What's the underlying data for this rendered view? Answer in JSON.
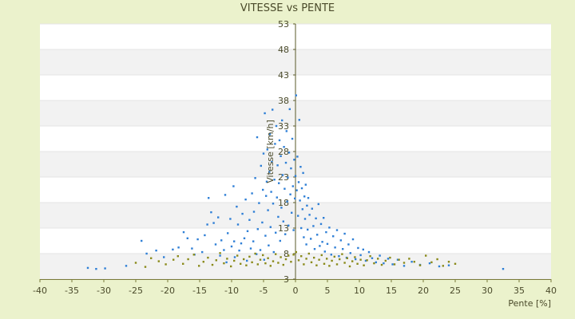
{
  "chart_data": {
    "type": "scatter",
    "title": "VITESSE vs PENTE",
    "xlabel": "Pente [%]",
    "ylabel": "Vitesse [km/h]",
    "xlim": [
      -40,
      40
    ],
    "ylim": [
      3,
      53
    ],
    "x_ticks": [
      -40,
      -35,
      -30,
      -25,
      -20,
      -15,
      -10,
      -5,
      0,
      5,
      10,
      15,
      20,
      25,
      30,
      35,
      40
    ],
    "y_ticks": [
      3,
      8,
      13,
      18,
      23,
      28,
      33,
      38,
      43,
      48,
      53
    ],
    "grid": "alternating horizontal bands",
    "legend": "none",
    "series": [
      {
        "color": "#2f7fd6",
        "points": [
          [
            -32.5,
            5.2
          ],
          [
            -31.2,
            5.0
          ],
          [
            -29.8,
            5.1
          ],
          [
            -26.5,
            5.6
          ],
          [
            -24.1,
            10.5
          ],
          [
            -23.3,
            8.0
          ],
          [
            -21.8,
            8.6
          ],
          [
            -20.6,
            7.3
          ],
          [
            -19.2,
            8.8
          ],
          [
            -18.3,
            9.2
          ],
          [
            -17.5,
            12.2
          ],
          [
            -16.9,
            11.0
          ],
          [
            -16.2,
            9.0
          ],
          [
            -15.8,
            7.8
          ],
          [
            -15.3,
            10.8
          ],
          [
            -14.6,
            8.3
          ],
          [
            -14.2,
            11.6
          ],
          [
            -13.8,
            13.7
          ],
          [
            -13.6,
            18.9
          ],
          [
            -13.2,
            16.1
          ],
          [
            -12.8,
            14.0
          ],
          [
            -12.5,
            9.8
          ],
          [
            -12.1,
            15.1
          ],
          [
            -11.8,
            7.6
          ],
          [
            -11.6,
            10.6
          ],
          [
            -11.2,
            8.7
          ],
          [
            -11.0,
            19.5
          ],
          [
            -10.8,
            6.3
          ],
          [
            -10.6,
            12.0
          ],
          [
            -10.2,
            14.8
          ],
          [
            -10.0,
            9.4
          ],
          [
            -9.7,
            21.2
          ],
          [
            -9.6,
            10.4
          ],
          [
            -9.5,
            7.3
          ],
          [
            -9.2,
            17.2
          ],
          [
            -9.0,
            13.7
          ],
          [
            -8.8,
            8.6
          ],
          [
            -8.5,
            10.0
          ],
          [
            -8.3,
            15.8
          ],
          [
            -8.0,
            11.0
          ],
          [
            -7.8,
            18.6
          ],
          [
            -7.6,
            6.6
          ],
          [
            -7.5,
            12.4
          ],
          [
            -7.2,
            14.6
          ],
          [
            -7.0,
            9.0
          ],
          [
            -6.8,
            19.8
          ],
          [
            -6.6,
            10.4
          ],
          [
            -6.5,
            16.2
          ],
          [
            -6.3,
            22.8
          ],
          [
            -6.1,
            7.9
          ],
          [
            -6.0,
            30.8
          ],
          [
            -5.9,
            12.8
          ],
          [
            -5.7,
            17.9
          ],
          [
            -5.5,
            8.7
          ],
          [
            -5.4,
            25.2
          ],
          [
            -5.2,
            14.1
          ],
          [
            -5.1,
            20.5
          ],
          [
            -5.0,
            27.6
          ],
          [
            -4.9,
            6.8
          ],
          [
            -4.8,
            35.5
          ],
          [
            -4.7,
            11.5
          ],
          [
            -4.6,
            19.3
          ],
          [
            -4.5,
            22.1
          ],
          [
            -4.4,
            28.4
          ],
          [
            -4.3,
            16.5
          ],
          [
            -4.2,
            9.6
          ],
          [
            -4.1,
            24.0
          ],
          [
            -4.0,
            31.4
          ],
          [
            -3.9,
            13.2
          ],
          [
            -3.8,
            20.1
          ],
          [
            -3.7,
            26.0
          ],
          [
            -3.6,
            36.2
          ],
          [
            -3.5,
            17.8
          ],
          [
            -3.4,
            8.3
          ],
          [
            -3.3,
            22.5
          ],
          [
            -3.2,
            29.5
          ],
          [
            -3.1,
            12.1
          ],
          [
            -3.0,
            33.0
          ],
          [
            -2.9,
            19.0
          ],
          [
            -2.8,
            25.3
          ],
          [
            -2.7,
            15.2
          ],
          [
            -2.6,
            21.8
          ],
          [
            -2.5,
            30.2
          ],
          [
            -2.4,
            10.5
          ],
          [
            -2.3,
            27.1
          ],
          [
            -2.2,
            17.0
          ],
          [
            -2.1,
            34.1
          ],
          [
            -2.0,
            23.4
          ],
          [
            -1.9,
            14.3
          ],
          [
            -1.8,
            28.9
          ],
          [
            -1.7,
            20.7
          ],
          [
            -1.6,
            11.8
          ],
          [
            -1.5,
            25.8
          ],
          [
            -1.4,
            32.0
          ],
          [
            -1.3,
            18.2
          ],
          [
            -1.2,
            22.9
          ],
          [
            -1.1,
            13.5
          ],
          [
            -1.0,
            27.8
          ],
          [
            -0.9,
            36.3
          ],
          [
            -0.8,
            19.6
          ],
          [
            -0.7,
            24.7
          ],
          [
            -0.6,
            16.0
          ],
          [
            -0.5,
            30.5
          ],
          [
            -0.4,
            21.2
          ],
          [
            -0.3,
            12.6
          ],
          [
            -0.2,
            26.4
          ],
          [
            -0.1,
            18.8
          ],
          [
            0.0,
            23.2
          ],
          [
            0.1,
            39.0
          ],
          [
            0.2,
            20.4
          ],
          [
            0.3,
            27.0
          ],
          [
            0.4,
            15.4
          ],
          [
            0.5,
            22.0
          ],
          [
            0.6,
            34.2
          ],
          [
            0.7,
            18.4
          ],
          [
            0.8,
            25.0
          ],
          [
            0.9,
            13.0
          ],
          [
            1.0,
            20.8
          ],
          [
            1.1,
            16.7
          ],
          [
            1.2,
            23.8
          ],
          [
            1.3,
            11.2
          ],
          [
            1.4,
            19.2
          ],
          [
            1.5,
            14.8
          ],
          [
            1.6,
            21.5
          ],
          [
            1.7,
            9.8
          ],
          [
            1.8,
            17.4
          ],
          [
            1.9,
            12.7
          ],
          [
            2.0,
            18.9
          ],
          [
            2.2,
            15.6
          ],
          [
            2.4,
            10.9
          ],
          [
            2.6,
            16.8
          ],
          [
            2.8,
            13.4
          ],
          [
            3.0,
            8.9
          ],
          [
            3.2,
            14.9
          ],
          [
            3.4,
            11.7
          ],
          [
            3.6,
            17.7
          ],
          [
            3.8,
            9.5
          ],
          [
            4.0,
            13.8
          ],
          [
            4.2,
            10.3
          ],
          [
            4.4,
            15.0
          ],
          [
            4.6,
            8.4
          ],
          [
            4.8,
            12.2
          ],
          [
            5.0,
            9.9
          ],
          [
            5.3,
            13.1
          ],
          [
            5.6,
            7.8
          ],
          [
            5.9,
            11.4
          ],
          [
            6.2,
            9.2
          ],
          [
            6.5,
            12.6
          ],
          [
            6.8,
            7.5
          ],
          [
            7.1,
            10.6
          ],
          [
            7.4,
            8.9
          ],
          [
            7.7,
            11.9
          ],
          [
            8.0,
            7.2
          ],
          [
            8.3,
            9.8
          ],
          [
            8.6,
            8.1
          ],
          [
            9.0,
            10.8
          ],
          [
            9.4,
            6.9
          ],
          [
            9.8,
            9.1
          ],
          [
            10.2,
            7.7
          ],
          [
            10.6,
            8.8
          ],
          [
            11.0,
            6.6
          ],
          [
            11.5,
            8.3
          ],
          [
            12.0,
            7.1
          ],
          [
            12.6,
            6.3
          ],
          [
            13.2,
            7.6
          ],
          [
            13.8,
            6.1
          ],
          [
            14.5,
            7.0
          ],
          [
            15.2,
            5.9
          ],
          [
            16.0,
            6.8
          ],
          [
            17.0,
            5.6
          ],
          [
            18.2,
            6.4
          ],
          [
            19.5,
            5.8
          ],
          [
            21.0,
            6.1
          ],
          [
            22.5,
            5.5
          ],
          [
            24.0,
            5.7
          ],
          [
            32.5,
            5.0
          ]
        ]
      },
      {
        "color": "#8a8a1a",
        "points": [
          [
            -25.0,
            6.2
          ],
          [
            -23.5,
            5.4
          ],
          [
            -22.6,
            7.1
          ],
          [
            -21.4,
            6.5
          ],
          [
            -20.3,
            5.9
          ],
          [
            -19.1,
            6.8
          ],
          [
            -18.4,
            7.5
          ],
          [
            -17.6,
            6.0
          ],
          [
            -16.8,
            6.9
          ],
          [
            -15.9,
            7.8
          ],
          [
            -15.1,
            5.6
          ],
          [
            -14.4,
            6.4
          ],
          [
            -13.7,
            7.2
          ],
          [
            -13.0,
            5.8
          ],
          [
            -12.4,
            6.7
          ],
          [
            -11.8,
            8.1
          ],
          [
            -11.2,
            6.1
          ],
          [
            -10.7,
            7.0
          ],
          [
            -10.1,
            5.5
          ],
          [
            -9.6,
            6.6
          ],
          [
            -9.1,
            7.6
          ],
          [
            -8.6,
            6.0
          ],
          [
            -8.1,
            6.9
          ],
          [
            -7.7,
            5.7
          ],
          [
            -7.2,
            7.4
          ],
          [
            -6.8,
            6.3
          ],
          [
            -6.3,
            8.0
          ],
          [
            -5.9,
            5.9
          ],
          [
            -5.5,
            6.8
          ],
          [
            -5.1,
            7.7
          ],
          [
            -4.7,
            6.1
          ],
          [
            -4.3,
            7.1
          ],
          [
            -3.9,
            5.6
          ],
          [
            -3.5,
            6.5
          ],
          [
            -3.1,
            7.9
          ],
          [
            -2.7,
            6.2
          ],
          [
            -2.3,
            7.3
          ],
          [
            -1.9,
            5.8
          ],
          [
            -1.5,
            6.9
          ],
          [
            -1.1,
            7.6
          ],
          [
            -0.7,
            6.4
          ],
          [
            -0.3,
            7.8
          ],
          [
            0.1,
            8.3
          ],
          [
            0.5,
            6.7
          ],
          [
            0.9,
            7.5
          ],
          [
            1.3,
            5.9
          ],
          [
            1.7,
            7.0
          ],
          [
            2.1,
            8.0
          ],
          [
            2.5,
            6.3
          ],
          [
            2.9,
            7.2
          ],
          [
            3.3,
            5.7
          ],
          [
            3.7,
            6.8
          ],
          [
            4.1,
            7.7
          ],
          [
            4.5,
            6.0
          ],
          [
            4.9,
            7.0
          ],
          [
            5.3,
            5.6
          ],
          [
            5.7,
            6.6
          ],
          [
            6.1,
            7.4
          ],
          [
            6.5,
            5.9
          ],
          [
            6.9,
            6.9
          ],
          [
            7.3,
            7.9
          ],
          [
            7.7,
            6.2
          ],
          [
            8.1,
            7.1
          ],
          [
            8.5,
            5.5
          ],
          [
            8.9,
            6.5
          ],
          [
            9.3,
            7.3
          ],
          [
            9.7,
            6.0
          ],
          [
            10.2,
            6.8
          ],
          [
            10.7,
            5.7
          ],
          [
            11.2,
            6.7
          ],
          [
            11.7,
            7.5
          ],
          [
            12.3,
            6.1
          ],
          [
            12.9,
            7.0
          ],
          [
            13.5,
            5.8
          ],
          [
            14.1,
            6.6
          ],
          [
            14.8,
            7.2
          ],
          [
            15.5,
            5.9
          ],
          [
            16.2,
            6.8
          ],
          [
            17.0,
            6.2
          ],
          [
            17.8,
            7.0
          ],
          [
            18.6,
            6.4
          ],
          [
            19.5,
            5.7
          ],
          [
            20.4,
            7.6
          ],
          [
            21.3,
            6.3
          ],
          [
            22.2,
            6.9
          ],
          [
            23.1,
            5.6
          ],
          [
            24.0,
            6.4
          ],
          [
            25.0,
            6.0
          ]
        ]
      }
    ]
  }
}
